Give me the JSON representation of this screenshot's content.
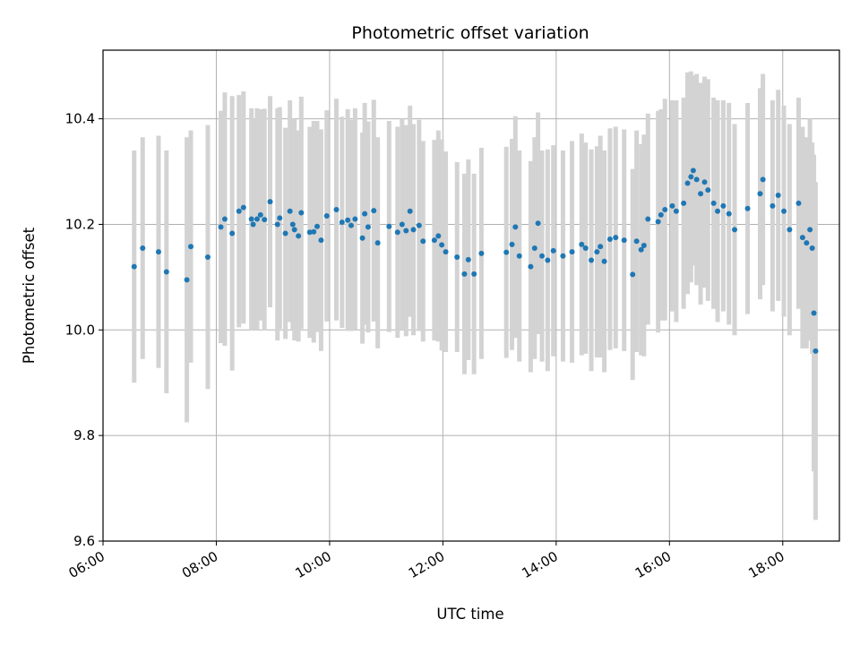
{
  "chart_data": {
    "type": "scatter",
    "title": "Photometric offset variation",
    "xlabel": "UTC time",
    "ylabel": "Photometric offset",
    "x_ticks": [
      "06:00",
      "08:00",
      "10:00",
      "12:00",
      "14:00",
      "16:00",
      "18:00"
    ],
    "y_ticks": [
      "9.6",
      "9.8",
      "10.0",
      "10.2",
      "10.4"
    ],
    "xlim": [
      6.0,
      19.0
    ],
    "ylim": [
      9.6,
      10.53
    ],
    "grid": true,
    "marker_color": "#1f77b4",
    "errorbar_color": "#d3d3d3",
    "series": [
      {
        "x": [
          6.55,
          6.7,
          6.98,
          7.12,
          7.48,
          7.55,
          7.85,
          8.08,
          8.15,
          8.28,
          8.4,
          8.48,
          8.62,
          8.65,
          8.72,
          8.78,
          8.85,
          8.95,
          9.08,
          9.12,
          9.22,
          9.3,
          9.35,
          9.38,
          9.45,
          9.5,
          9.65,
          9.72,
          9.78,
          9.85,
          9.95,
          10.12,
          10.22,
          10.32,
          10.38,
          10.45,
          10.58,
          10.62,
          10.68,
          10.78,
          10.85,
          11.05,
          11.2,
          11.28,
          11.35,
          11.42,
          11.48,
          11.58,
          11.65,
          11.85,
          11.92,
          11.98,
          12.05,
          12.25,
          12.38,
          12.45,
          12.55,
          12.68,
          13.12,
          13.22,
          13.28,
          13.35,
          13.55,
          13.62,
          13.68,
          13.75,
          13.85,
          13.95,
          14.12,
          14.28,
          14.45,
          14.52,
          14.62,
          14.72,
          14.78,
          14.85,
          14.95,
          15.05,
          15.2,
          15.35,
          15.42,
          15.5,
          15.55,
          15.62,
          15.8,
          15.85,
          15.92,
          16.05,
          16.12,
          16.25,
          16.32,
          16.38,
          16.42,
          16.48,
          16.55,
          16.62,
          16.68,
          16.78,
          16.85,
          16.95,
          17.05,
          17.15,
          17.38,
          17.6,
          17.65,
          17.82,
          17.92,
          18.02,
          18.12,
          18.28,
          18.35,
          18.42,
          18.48,
          18.52,
          18.55,
          18.58
        ],
        "y": [
          10.12,
          10.155,
          10.148,
          10.11,
          10.095,
          10.158,
          10.138,
          10.195,
          10.21,
          10.183,
          10.225,
          10.232,
          10.21,
          10.2,
          10.21,
          10.218,
          10.209,
          10.243,
          10.2,
          10.212,
          10.183,
          10.225,
          10.2,
          10.19,
          10.178,
          10.222,
          10.185,
          10.186,
          10.196,
          10.17,
          10.216,
          10.228,
          10.204,
          10.208,
          10.198,
          10.21,
          10.174,
          10.22,
          10.195,
          10.226,
          10.165,
          10.196,
          10.185,
          10.2,
          10.188,
          10.225,
          10.19,
          10.198,
          10.168,
          10.17,
          10.178,
          10.161,
          10.148,
          10.138,
          10.106,
          10.133,
          10.106,
          10.145,
          10.147,
          10.162,
          10.195,
          10.14,
          10.12,
          10.155,
          10.202,
          10.14,
          10.132,
          10.15,
          10.14,
          10.148,
          10.162,
          10.155,
          10.132,
          10.148,
          10.158,
          10.13,
          10.172,
          10.175,
          10.17,
          10.105,
          10.168,
          10.152,
          10.16,
          10.21,
          10.205,
          10.218,
          10.228,
          10.235,
          10.225,
          10.24,
          10.278,
          10.29,
          10.302,
          10.285,
          10.258,
          10.28,
          10.265,
          10.24,
          10.225,
          10.235,
          10.22,
          10.19,
          10.23,
          10.258,
          10.285,
          10.235,
          10.255,
          10.225,
          10.19,
          10.24,
          10.175,
          10.165,
          10.19,
          10.155,
          10.032,
          9.96
        ],
        "yerr": [
          0.22,
          0.21,
          0.22,
          0.23,
          0.27,
          0.22,
          0.25,
          0.22,
          0.24,
          0.26,
          0.22,
          0.22,
          0.21,
          0.2,
          0.21,
          0.2,
          0.21,
          0.2,
          0.22,
          0.21,
          0.2,
          0.21,
          0.2,
          0.21,
          0.2,
          0.22,
          0.2,
          0.21,
          0.2,
          0.21,
          0.2,
          0.21,
          0.2,
          0.21,
          0.2,
          0.21,
          0.2,
          0.21,
          0.2,
          0.21,
          0.2,
          0.2,
          0.2,
          0.2,
          0.2,
          0.2,
          0.2,
          0.2,
          0.19,
          0.19,
          0.2,
          0.2,
          0.19,
          0.18,
          0.19,
          0.19,
          0.19,
          0.2,
          0.2,
          0.2,
          0.21,
          0.2,
          0.2,
          0.21,
          0.21,
          0.2,
          0.21,
          0.2,
          0.2,
          0.21,
          0.21,
          0.2,
          0.21,
          0.2,
          0.21,
          0.21,
          0.21,
          0.21,
          0.21,
          0.2,
          0.21,
          0.2,
          0.21,
          0.2,
          0.21,
          0.2,
          0.21,
          0.2,
          0.21,
          0.2,
          0.21,
          0.2,
          0.18,
          0.2,
          0.21,
          0.2,
          0.21,
          0.2,
          0.21,
          0.2,
          0.21,
          0.2,
          0.2,
          0.2,
          0.2,
          0.2,
          0.2,
          0.2,
          0.2,
          0.2,
          0.21,
          0.2,
          0.21,
          0.2,
          0.3,
          0.32
        ]
      }
    ]
  }
}
